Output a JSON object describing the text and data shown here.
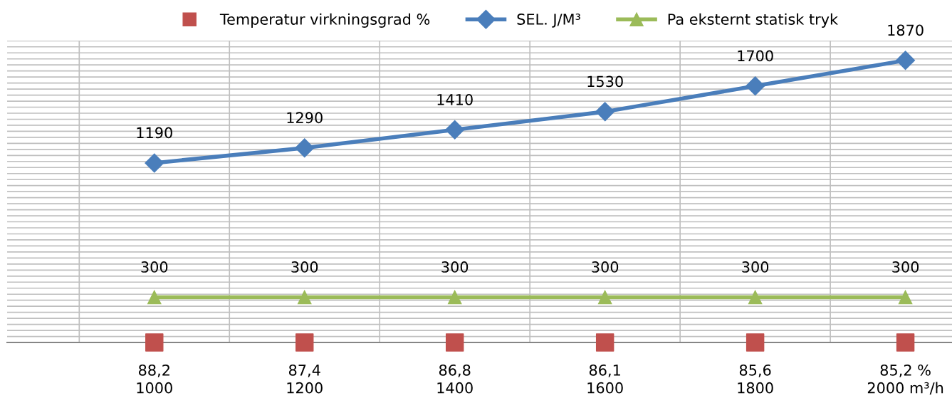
{
  "chart_data": {
    "type": "line",
    "categories": [
      "88,2\n1000",
      "87,4\n1200",
      "86,8\n1400",
      "86,1\n1600",
      "85,6\n1800",
      "85,2 %\n2000 m³/h"
    ],
    "series": [
      {
        "name": "Temperatur virkningsgrad %",
        "type": "scatter",
        "marker": "square",
        "color": "#c0504d",
        "values": [
          0,
          0,
          0,
          0,
          0,
          0
        ]
      },
      {
        "name": "SEL. J/M³",
        "marker": "diamond",
        "color": "#4a7ebb",
        "values": [
          1190,
          1290,
          1410,
          1530,
          1700,
          1870
        ],
        "value_labels": [
          "1190",
          "1290",
          "1410",
          "1530",
          "1700",
          "1870"
        ]
      },
      {
        "name": "Pa eksternt statisk tryk",
        "marker": "triangle",
        "color": "#9bbb59",
        "values": [
          300,
          300,
          300,
          300,
          300,
          300
        ],
        "value_labels": [
          "300",
          "300",
          "300",
          "300",
          "300",
          "300"
        ]
      }
    ],
    "ylim": [
      0,
      2000
    ],
    "yticks": [
      {
        "value": 0,
        "label": null
      },
      {
        "value": 40,
        "label": null
      },
      {
        "value": 80,
        "label": null
      },
      {
        "value": 120,
        "label": null
      },
      {
        "value": 160,
        "label": null
      },
      {
        "value": 200,
        "label": null
      },
      {
        "value": 240,
        "label": null
      },
      {
        "value": 280,
        "label": null
      },
      {
        "value": 320,
        "label": null
      },
      {
        "value": 360,
        "label": null
      },
      {
        "value": 400,
        "label": null
      },
      {
        "value": 440,
        "label": null
      },
      {
        "value": 480,
        "label": null
      },
      {
        "value": 520,
        "label": null
      },
      {
        "value": 560,
        "label": null
      },
      {
        "value": 600,
        "label": null
      },
      {
        "value": 640,
        "label": null
      },
      {
        "value": 680,
        "label": null
      },
      {
        "value": 720,
        "label": null
      },
      {
        "value": 760,
        "label": null
      },
      {
        "value": 800,
        "label": null
      },
      {
        "value": 840,
        "label": null
      },
      {
        "value": 880,
        "label": null
      },
      {
        "value": 920,
        "label": null
      },
      {
        "value": 960,
        "label": null
      },
      {
        "value": 1000,
        "label": null
      },
      {
        "value": 1040,
        "label": null
      },
      {
        "value": 1080,
        "label": null
      },
      {
        "value": 1120,
        "label": null
      },
      {
        "value": 1160,
        "label": null
      },
      {
        "value": 1200,
        "label": null
      },
      {
        "value": 1240,
        "label": null
      },
      {
        "value": 1280,
        "label": null
      },
      {
        "value": 1320,
        "label": null
      },
      {
        "value": 1360,
        "label": null
      },
      {
        "value": 1400,
        "label": null
      },
      {
        "value": 1440,
        "label": null
      },
      {
        "value": 1480,
        "label": null
      },
      {
        "value": 1520,
        "label": null
      },
      {
        "value": 1560,
        "label": null
      },
      {
        "value": 1600,
        "label": null
      },
      {
        "value": 1640,
        "label": null
      },
      {
        "value": 1680,
        "label": null
      },
      {
        "value": 1720,
        "label": null
      },
      {
        "value": 1760,
        "label": null
      },
      {
        "value": 1800,
        "label": null
      },
      {
        "value": 1840,
        "label": null
      },
      {
        "value": 1880,
        "label": null
      },
      {
        "value": 1920,
        "label": null
      },
      {
        "value": 1960,
        "label": null
      },
      {
        "value": 2000,
        "label": null
      }
    ],
    "tick_labels": "x",
    "grid": true,
    "legend": "top"
  }
}
